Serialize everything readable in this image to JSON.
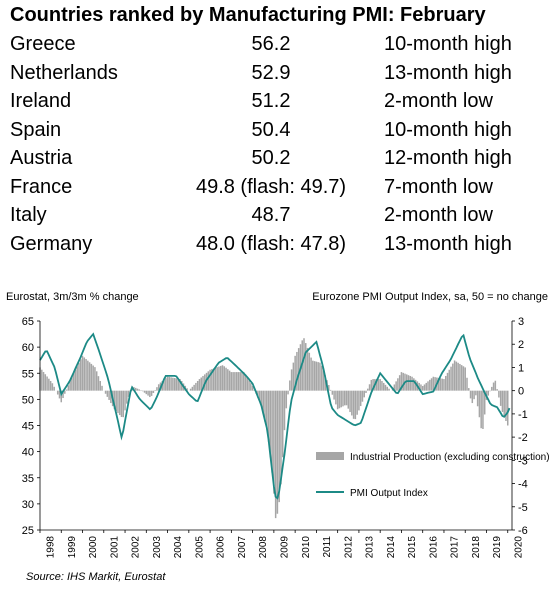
{
  "table": {
    "title": "Countries ranked by Manufacturing PMI: February",
    "rows": [
      {
        "country": "Greece",
        "value": "56.2",
        "note": "10-month high"
      },
      {
        "country": "Netherlands",
        "value": "52.9",
        "note": "13-month high"
      },
      {
        "country": "Ireland",
        "value": "51.2",
        "note": "2-month low"
      },
      {
        "country": "Spain",
        "value": "50.4",
        "note": "10-month high"
      },
      {
        "country": "Austria",
        "value": "50.2",
        "note": "12-month high"
      },
      {
        "country": "France",
        "value": "49.8 (flash: 49.7)",
        "note": "7-month low"
      },
      {
        "country": "Italy",
        "value": "48.7",
        "note": "2-month low"
      },
      {
        "country": "Germany",
        "value": "48.0 (flash: 47.8)",
        "note": "13-month high"
      }
    ]
  },
  "chart_data": {
    "type": "bar",
    "left_label": "Eurostat, 3m/3m % change",
    "right_label": "Eurozone PMI Output Index, sa, 50 = no change",
    "x_ticks": [
      "1998",
      "1999",
      "2000",
      "2001",
      "2002",
      "2003",
      "2004",
      "2005",
      "2006",
      "2007",
      "2008",
      "2009",
      "2010",
      "2011",
      "2012",
      "2013",
      "2014",
      "2015",
      "2016",
      "2017",
      "2018",
      "2019",
      "2020"
    ],
    "left_axis": {
      "min": 25,
      "max": 65,
      "ticks": [
        25,
        30,
        35,
        40,
        45,
        50,
        55,
        60,
        65
      ]
    },
    "right_axis": {
      "min": -6,
      "max": 3,
      "ticks": [
        -6,
        -5,
        -4,
        -3,
        -2,
        -1,
        0,
        1,
        2,
        3
      ]
    },
    "grid": false,
    "legend_position": "bottom-right",
    "series": [
      {
        "name": "Industrial Production (excluding construction)",
        "axis": "right",
        "kind": "bar",
        "color": "#a6a6a6",
        "anchors": [
          [
            1998.0,
            1.0
          ],
          [
            1998.6,
            0.3
          ],
          [
            1999.0,
            -0.5
          ],
          [
            1999.5,
            0.6
          ],
          [
            2000.0,
            1.5
          ],
          [
            2000.6,
            1.0
          ],
          [
            2001.0,
            0.0
          ],
          [
            2001.5,
            -0.8
          ],
          [
            2001.9,
            -1.2
          ],
          [
            2002.3,
            0.2
          ],
          [
            2002.8,
            0.0
          ],
          [
            2003.2,
            -0.3
          ],
          [
            2003.6,
            0.3
          ],
          [
            2004.0,
            0.6
          ],
          [
            2004.6,
            0.5
          ],
          [
            2005.0,
            0.0
          ],
          [
            2005.5,
            0.5
          ],
          [
            2006.0,
            0.9
          ],
          [
            2006.6,
            1.1
          ],
          [
            2007.0,
            0.8
          ],
          [
            2007.6,
            0.8
          ],
          [
            2008.0,
            0.2
          ],
          [
            2008.4,
            -0.6
          ],
          [
            2008.7,
            -1.8
          ],
          [
            2008.95,
            -3.8
          ],
          [
            2009.1,
            -5.7
          ],
          [
            2009.3,
            -4.5
          ],
          [
            2009.55,
            -1.0
          ],
          [
            2009.8,
            0.8
          ],
          [
            2010.0,
            1.5
          ],
          [
            2010.4,
            2.3
          ],
          [
            2010.8,
            1.3
          ],
          [
            2011.2,
            1.2
          ],
          [
            2011.6,
            0.2
          ],
          [
            2012.0,
            -0.8
          ],
          [
            2012.4,
            -0.6
          ],
          [
            2012.8,
            -1.3
          ],
          [
            2013.2,
            -0.4
          ],
          [
            2013.6,
            0.5
          ],
          [
            2014.0,
            0.5
          ],
          [
            2014.5,
            0.0
          ],
          [
            2015.0,
            0.8
          ],
          [
            2015.5,
            0.6
          ],
          [
            2016.0,
            0.2
          ],
          [
            2016.5,
            0.6
          ],
          [
            2017.0,
            0.5
          ],
          [
            2017.5,
            1.3
          ],
          [
            2018.0,
            1.0
          ],
          [
            2018.3,
            -0.6
          ],
          [
            2018.5,
            -0.2
          ],
          [
            2018.8,
            -1.9
          ],
          [
            2019.0,
            -0.4
          ],
          [
            2019.4,
            0.5
          ],
          [
            2019.7,
            -0.8
          ],
          [
            2020.0,
            -1.5
          ]
        ]
      },
      {
        "name": "PMI Output Index",
        "axis": "left",
        "kind": "line",
        "color": "#1c8a86",
        "anchors": [
          [
            1998.0,
            57.5
          ],
          [
            1998.3,
            59.5
          ],
          [
            1998.7,
            56.0
          ],
          [
            1999.0,
            51.0
          ],
          [
            1999.4,
            53.5
          ],
          [
            1999.9,
            58.0
          ],
          [
            2000.2,
            61.0
          ],
          [
            2000.5,
            62.5
          ],
          [
            2000.8,
            59.0
          ],
          [
            2001.2,
            54.0
          ],
          [
            2001.6,
            47.0
          ],
          [
            2001.85,
            42.5
          ],
          [
            2002.3,
            52.5
          ],
          [
            2002.7,
            50.0
          ],
          [
            2003.2,
            48.0
          ],
          [
            2003.5,
            50.5
          ],
          [
            2003.9,
            54.5
          ],
          [
            2004.4,
            54.5
          ],
          [
            2005.0,
            51.0
          ],
          [
            2005.4,
            49.5
          ],
          [
            2005.8,
            53.5
          ],
          [
            2006.4,
            57.0
          ],
          [
            2006.8,
            58.0
          ],
          [
            2007.2,
            56.5
          ],
          [
            2007.7,
            54.5
          ],
          [
            2008.0,
            53.0
          ],
          [
            2008.4,
            49.0
          ],
          [
            2008.7,
            44.0
          ],
          [
            2008.9,
            37.0
          ],
          [
            2009.05,
            31.5
          ],
          [
            2009.2,
            31.0
          ],
          [
            2009.5,
            39.5
          ],
          [
            2009.8,
            49.5
          ],
          [
            2010.1,
            54.0
          ],
          [
            2010.5,
            59.0
          ],
          [
            2011.0,
            61.0
          ],
          [
            2011.3,
            56.5
          ],
          [
            2011.7,
            48.5
          ],
          [
            2012.0,
            47.0
          ],
          [
            2012.4,
            46.0
          ],
          [
            2012.8,
            45.0
          ],
          [
            2013.1,
            45.5
          ],
          [
            2013.6,
            51.5
          ],
          [
            2014.0,
            55.0
          ],
          [
            2014.4,
            53.0
          ],
          [
            2014.8,
            51.0
          ],
          [
            2015.2,
            53.5
          ],
          [
            2015.6,
            53.5
          ],
          [
            2016.0,
            51.0
          ],
          [
            2016.5,
            51.5
          ],
          [
            2016.9,
            55.0
          ],
          [
            2017.3,
            57.5
          ],
          [
            2017.9,
            62.5
          ],
          [
            2018.2,
            58.0
          ],
          [
            2018.6,
            54.0
          ],
          [
            2018.95,
            51.0
          ],
          [
            2019.2,
            49.0
          ],
          [
            2019.5,
            48.5
          ],
          [
            2019.8,
            46.5
          ],
          [
            2020.0,
            47.5
          ],
          [
            2020.1,
            48.5
          ]
        ]
      }
    ],
    "source": "Source: IHS Markit, Eurostat"
  }
}
